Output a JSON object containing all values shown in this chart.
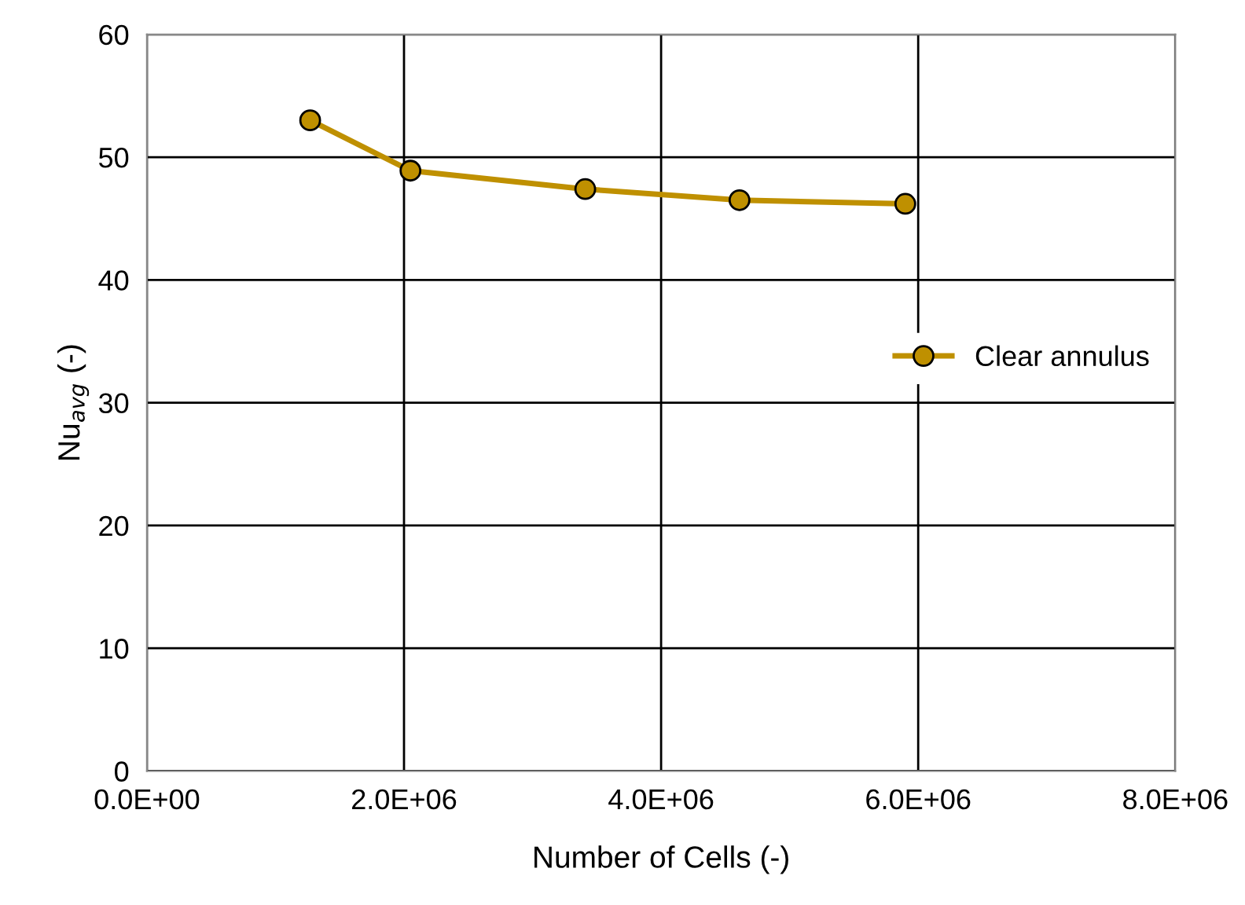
{
  "chart_data": {
    "type": "line",
    "xlabel": "Number of Cells (-)",
    "ylabel": "Nu$_{avg}$ (-)",
    "xlim": [
      0,
      8000000
    ],
    "xticks": [
      {
        "value": 0,
        "label": "0.0E+00"
      },
      {
        "value": 2000000,
        "label": "2.0E+06"
      },
      {
        "value": 4000000,
        "label": "4.0E+06"
      },
      {
        "value": 6000000,
        "label": "6.0E+06"
      },
      {
        "value": 8000000,
        "label": "8.0E+06"
      }
    ],
    "ylim": [
      0,
      60
    ],
    "yticks": [
      0,
      10,
      20,
      30,
      40,
      50,
      60
    ],
    "grid": true,
    "legend": "right",
    "marker": "circle",
    "line_style": "solid",
    "series": [
      {
        "name": "Clear annulus",
        "color": "#bf9000",
        "x": [
          1270000,
          2050000,
          3410000,
          4610000,
          5900000
        ],
        "values": [
          53,
          48.9,
          47.4,
          46.5,
          46.2
        ]
      }
    ]
  }
}
